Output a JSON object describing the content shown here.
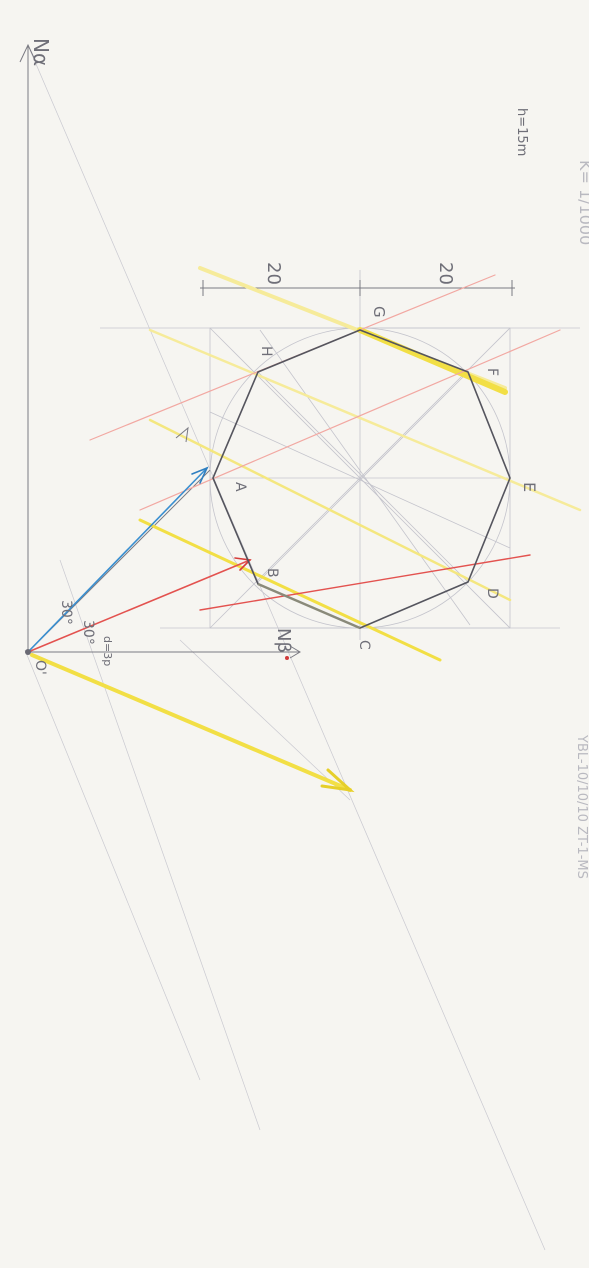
{
  "labels": {
    "north_left": "Nα",
    "north_right": "Nβ",
    "height": "h=15m",
    "scale": "K= 1/1000",
    "dim_left": "20",
    "dim_right": "20",
    "angle_upper": "30°",
    "angle_lower": "30°",
    "angle_small": "d=3p",
    "origin": "O'",
    "faint_note": "YBL-10/10/10 ZT-1-MS",
    "vertices": {
      "A": "A",
      "B": "B",
      "C": "C",
      "D": "D",
      "E": "E",
      "F": "F",
      "G": "G",
      "H": "H"
    }
  },
  "colors": {
    "paper": "#f6f5f1",
    "pencil": "#5d5d66",
    "construction": "#b8b8c2",
    "blue": "#3a8fd0",
    "red": "#e3524f",
    "red_light": "#f2a8a2",
    "yellow": "#f2df45",
    "yellow_light": "#f6eb9a",
    "green_faint": "#9fd3a8"
  }
}
